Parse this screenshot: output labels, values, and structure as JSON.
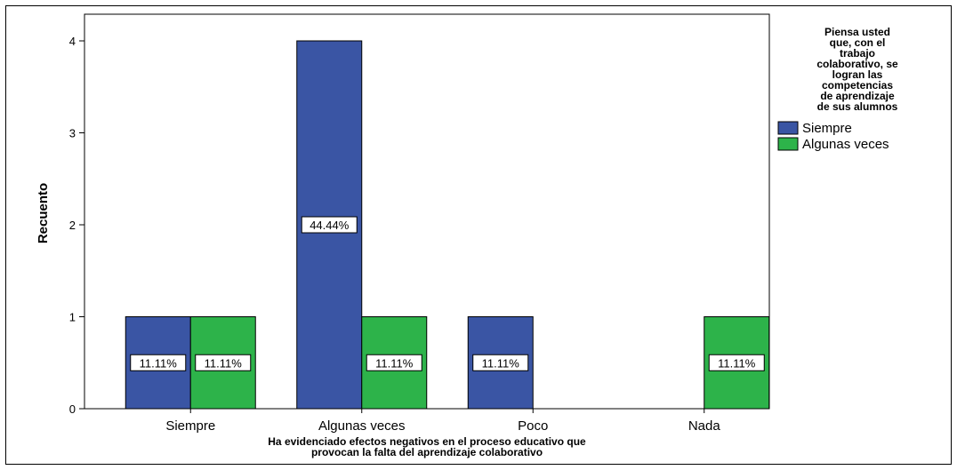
{
  "chart_data": {
    "type": "bar",
    "title": "",
    "xlabel": "Ha evidenciado efectos negativos en el proceso educativo que provocan la falta del aprendizaje colaborativo",
    "xlabel_lines": [
      "Ha evidenciado efectos negativos en el proceso educativo que",
      "provocan la falta del aprendizaje colaborativo"
    ],
    "ylabel": "Recuento",
    "ylim": [
      0,
      4
    ],
    "yticks": [
      0,
      1,
      2,
      3,
      4
    ],
    "ytick_labels": [
      "0",
      "1",
      "2",
      "3",
      "4"
    ],
    "categories": [
      "Siempre",
      "Algunas veces",
      "Poco",
      "Nada"
    ],
    "series": [
      {
        "name": "Siempre",
        "color": "#3a55a4",
        "values": [
          1,
          4,
          1,
          0
        ],
        "labels": [
          "11.11%",
          "44.44%",
          "11.11%",
          ""
        ]
      },
      {
        "name": "Algunas veces",
        "color": "#2db34a",
        "values": [
          1,
          1,
          0,
          1
        ],
        "labels": [
          "11.11%",
          "11.11%",
          "",
          "11.11%"
        ]
      }
    ],
    "legend": {
      "title_lines": [
        "Piensa usted",
        "que, con el",
        "trabajo",
        "colaborativo, se",
        "logran las",
        "competencias",
        "de aprendizaje",
        "de sus alumnos"
      ],
      "placement": "right"
    },
    "grid": false
  }
}
